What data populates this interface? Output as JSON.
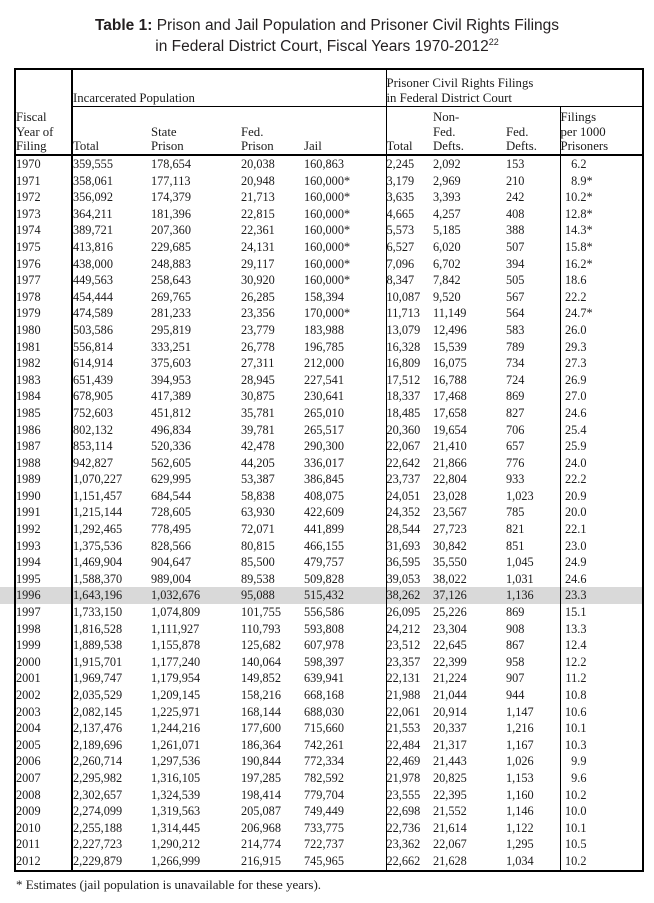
{
  "title": {
    "prefix": "Table 1:",
    "line1_rest": " Prison and Jail Population and Prisoner Civil Rights Filings",
    "line2": "in Federal District Court, Fiscal Years 1970-2012",
    "footnote_ref": "22"
  },
  "table": {
    "corner_header_lines": [
      "Fiscal",
      "Year of",
      "Filing"
    ],
    "groups": [
      {
        "lines": [
          "Incarcerated Population"
        ]
      },
      {
        "lines": [
          "Prisoner Civil Rights Filings",
          "in Federal District Court"
        ]
      }
    ],
    "sub_headers": [
      [
        "Total"
      ],
      [
        "State",
        "Prison"
      ],
      [
        "Fed.",
        "Prison"
      ],
      [
        "Jail"
      ],
      [
        "Total"
      ],
      [
        "Non-",
        "Fed.",
        "Defts."
      ],
      [
        "Fed.",
        "Defts."
      ],
      [
        "Filings",
        "per 1000",
        "Prisoners"
      ]
    ],
    "highlighted_year": "1996",
    "highlight_color": "#d9d9d9",
    "rows": [
      [
        "1970",
        "359,555",
        "178,654",
        "20,038",
        "160,863",
        "2,245",
        "2,092",
        "153",
        "6.2"
      ],
      [
        "1971",
        "358,061",
        "177,113",
        "20,948",
        "160,000*",
        "3,179",
        "2,969",
        "210",
        "8.9*"
      ],
      [
        "1972",
        "356,092",
        "174,379",
        "21,713",
        "160,000*",
        "3,635",
        "3,393",
        "242",
        "10.2*"
      ],
      [
        "1973",
        "364,211",
        "181,396",
        "22,815",
        "160,000*",
        "4,665",
        "4,257",
        "408",
        "12.8*"
      ],
      [
        "1974",
        "389,721",
        "207,360",
        "22,361",
        "160,000*",
        "5,573",
        "5,185",
        "388",
        "14.3*"
      ],
      [
        "1975",
        "413,816",
        "229,685",
        "24,131",
        "160,000*",
        "6,527",
        "6,020",
        "507",
        "15.8*"
      ],
      [
        "1976",
        "438,000",
        "248,883",
        "29,117",
        "160,000*",
        "7,096",
        "6,702",
        "394",
        "16.2*"
      ],
      [
        "1977",
        "449,563",
        "258,643",
        "30,920",
        "160,000*",
        "8,347",
        "7,842",
        "505",
        "18.6"
      ],
      [
        "1978",
        "454,444",
        "269,765",
        "26,285",
        "158,394",
        "10,087",
        "9,520",
        "567",
        "22.2"
      ],
      [
        "1979",
        "474,589",
        "281,233",
        "23,356",
        "170,000*",
        "11,713",
        "11,149",
        "564",
        "24.7*"
      ],
      [
        "1980",
        "503,586",
        "295,819",
        "23,779",
        "183,988",
        "13,079",
        "12,496",
        "583",
        "26.0"
      ],
      [
        "1981",
        "556,814",
        "333,251",
        "26,778",
        "196,785",
        "16,328",
        "15,539",
        "789",
        "29.3"
      ],
      [
        "1982",
        "614,914",
        "375,603",
        "27,311",
        "212,000",
        "16,809",
        "16,075",
        "734",
        "27.3"
      ],
      [
        "1983",
        "651,439",
        "394,953",
        "28,945",
        "227,541",
        "17,512",
        "16,788",
        "724",
        "26.9"
      ],
      [
        "1984",
        "678,905",
        "417,389",
        "30,875",
        "230,641",
        "18,337",
        "17,468",
        "869",
        "27.0"
      ],
      [
        "1985",
        "752,603",
        "451,812",
        "35,781",
        "265,010",
        "18,485",
        "17,658",
        "827",
        "24.6"
      ],
      [
        "1986",
        "802,132",
        "496,834",
        "39,781",
        "265,517",
        "20,360",
        "19,654",
        "706",
        "25.4"
      ],
      [
        "1987",
        "853,114",
        "520,336",
        "42,478",
        "290,300",
        "22,067",
        "21,410",
        "657",
        "25.9"
      ],
      [
        "1988",
        "942,827",
        "562,605",
        "44,205",
        "336,017",
        "22,642",
        "21,866",
        "776",
        "24.0"
      ],
      [
        "1989",
        "1,070,227",
        "629,995",
        "53,387",
        "386,845",
        "23,737",
        "22,804",
        "933",
        "22.2"
      ],
      [
        "1990",
        "1,151,457",
        "684,544",
        "58,838",
        "408,075",
        "24,051",
        "23,028",
        "1,023",
        "20.9"
      ],
      [
        "1991",
        "1,215,144",
        "728,605",
        "63,930",
        "422,609",
        "24,352",
        "23,567",
        "785",
        "20.0"
      ],
      [
        "1992",
        "1,292,465",
        "778,495",
        "72,071",
        "441,899",
        "28,544",
        "27,723",
        "821",
        "22.1"
      ],
      [
        "1993",
        "1,375,536",
        "828,566",
        "80,815",
        "466,155",
        "31,693",
        "30,842",
        "851",
        "23.0"
      ],
      [
        "1994",
        "1,469,904",
        "904,647",
        "85,500",
        "479,757",
        "36,595",
        "35,550",
        "1,045",
        "24.9"
      ],
      [
        "1995",
        "1,588,370",
        "989,004",
        "89,538",
        "509,828",
        "39,053",
        "38,022",
        "1,031",
        "24.6"
      ],
      [
        "1996",
        "1,643,196",
        "1,032,676",
        "95,088",
        "515,432",
        "38,262",
        "37,126",
        "1,136",
        "23.3"
      ],
      [
        "1997",
        "1,733,150",
        "1,074,809",
        "101,755",
        "556,586",
        "26,095",
        "25,226",
        "869",
        "15.1"
      ],
      [
        "1998",
        "1,816,528",
        "1,111,927",
        "110,793",
        "593,808",
        "24,212",
        "23,304",
        "908",
        "13.3"
      ],
      [
        "1999",
        "1,889,538",
        "1,155,878",
        "125,682",
        "607,978",
        "23,512",
        "22,645",
        "867",
        "12.4"
      ],
      [
        "2000",
        "1,915,701",
        "1,177,240",
        "140,064",
        "598,397",
        "23,357",
        "22,399",
        "958",
        "12.2"
      ],
      [
        "2001",
        "1,969,747",
        "1,179,954",
        "149,852",
        "639,941",
        "22,131",
        "21,224",
        "907",
        "11.2"
      ],
      [
        "2002",
        "2,035,529",
        "1,209,145",
        "158,216",
        "668,168",
        "21,988",
        "21,044",
        "944",
        "10.8"
      ],
      [
        "2003",
        "2,082,145",
        "1,225,971",
        "168,144",
        "688,030",
        "22,061",
        "20,914",
        "1,147",
        "10.6"
      ],
      [
        "2004",
        "2,137,476",
        "1,244,216",
        "177,600",
        "715,660",
        "21,553",
        "20,337",
        "1,216",
        "10.1"
      ],
      [
        "2005",
        "2,189,696",
        "1,261,071",
        "186,364",
        "742,261",
        "22,484",
        "21,317",
        "1,167",
        "10.3"
      ],
      [
        "2006",
        "2,260,714",
        "1,297,536",
        "190,844",
        "772,334",
        "22,469",
        "21,443",
        "1,026",
        "9.9"
      ],
      [
        "2007",
        "2,295,982",
        "1,316,105",
        "197,285",
        "782,592",
        "21,978",
        "20,825",
        "1,153",
        "9.6"
      ],
      [
        "2008",
        "2,302,657",
        "1,324,539",
        "198,414",
        "779,704",
        "23,555",
        "22,395",
        "1,160",
        "10.2"
      ],
      [
        "2009",
        "2,274,099",
        "1,319,563",
        "205,087",
        "749,449",
        "22,698",
        "21,552",
        "1,146",
        "10.0"
      ],
      [
        "2010",
        "2,255,188",
        "1,314,445",
        "206,968",
        "733,775",
        "22,736",
        "21,614",
        "1,122",
        "10.1"
      ],
      [
        "2011",
        "2,227,723",
        "1,290,212",
        "214,774",
        "722,737",
        "23,362",
        "22,067",
        "1,295",
        "10.5"
      ],
      [
        "2012",
        "2,229,879",
        "1,266,999",
        "216,915",
        "745,965",
        "22,662",
        "21,628",
        "1,034",
        "10.2"
      ]
    ]
  },
  "footnote": "* Estimates (jail population is unavailable for these years)."
}
